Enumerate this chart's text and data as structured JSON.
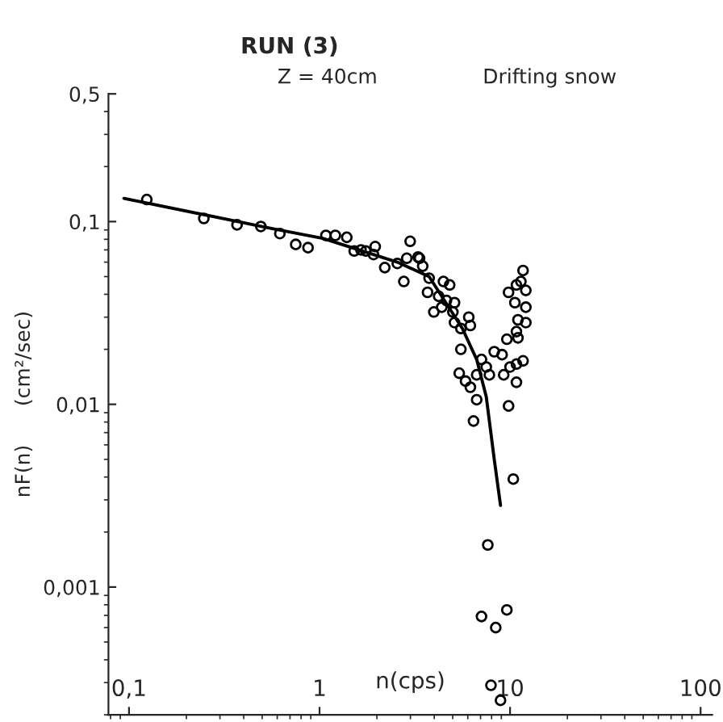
{
  "chart_data": {
    "type": "scatter",
    "title": "RUN (3)",
    "xlabel": "n(cps)",
    "ylabel": "nF(n)      (cm²/sec)",
    "annotations": [
      "Z = 40cm",
      "Drifting snow"
    ],
    "log": "xy",
    "grid": false,
    "legend": false,
    "xlim": [
      0.078,
      115
    ],
    "ylim": [
      0.0002,
      0.5
    ],
    "xticks": [
      {
        "value": 0.1,
        "label": "0,1"
      },
      1,
      10,
      100
    ],
    "yticks": [
      {
        "value": 0.5,
        "label": "0,5"
      },
      {
        "value": 0.1,
        "label": "0,1"
      },
      {
        "value": 0.01,
        "label": "0,01"
      },
      {
        "value": 0.001,
        "label": "0,001"
      }
    ],
    "series": [
      {
        "marker": "circle",
        "color": "#000000",
        "x": [
          0.124,
          0.247,
          0.369,
          0.492,
          0.619,
          0.75,
          0.87,
          1.08,
          1.21,
          1.39,
          1.52,
          1.75,
          1.96,
          2.99,
          3.29,
          1.65,
          1.92,
          2.2,
          2.56,
          2.87,
          3.35,
          3.48,
          2.77,
          3.76,
          4.47,
          4.82,
          3.69,
          4.22,
          4.64,
          5.11,
          3.98,
          4.38,
          5.01,
          5.11,
          5.52,
          6.07,
          6.19,
          5.52,
          5.41,
          5.84,
          6.19,
          6.68,
          7.08,
          7.5,
          7.79,
          8.26,
          9.08,
          9.26,
          10,
          10.8,
          11.7,
          9.62,
          11.0,
          10.8,
          11.0,
          12.1,
          12.1,
          10.6,
          9.82,
          10.8,
          11.4,
          12.1,
          11.7,
          10.8,
          6.68,
          9.82,
          6.43,
          10.4,
          7.64,
          7.08,
          8.41,
          9.62,
          7.94,
          8.91
        ],
        "values": [
          0.132,
          0.104,
          0.096,
          0.094,
          0.086,
          0.075,
          0.072,
          0.084,
          0.084,
          0.082,
          0.069,
          0.069,
          0.073,
          0.078,
          0.064,
          0.07,
          0.066,
          0.056,
          0.059,
          0.063,
          0.063,
          0.057,
          0.047,
          0.049,
          0.047,
          0.045,
          0.041,
          0.039,
          0.037,
          0.036,
          0.032,
          0.034,
          0.032,
          0.028,
          0.026,
          0.03,
          0.027,
          0.02,
          0.0148,
          0.0134,
          0.0124,
          0.0145,
          0.0176,
          0.016,
          0.0145,
          0.0194,
          0.0187,
          0.0145,
          0.016,
          0.0166,
          0.0173,
          0.0227,
          0.0231,
          0.025,
          0.029,
          0.028,
          0.034,
          0.036,
          0.041,
          0.045,
          0.047,
          0.042,
          0.054,
          0.0132,
          0.0106,
          0.0098,
          0.0081,
          0.0039,
          0.0017,
          0.00069,
          0.0006,
          0.00075,
          0.00029,
          0.00024
        ]
      },
      {
        "type": "line",
        "color": "#000000",
        "x": [
          0.094,
          0.552,
          1.04,
          2.56,
          3.76,
          5.62,
          6.68,
          7.5,
          8.26,
          8.91
        ],
        "values": [
          0.134,
          0.092,
          0.081,
          0.06,
          0.05,
          0.026,
          0.0176,
          0.011,
          0.005,
          0.0028
        ]
      }
    ]
  }
}
